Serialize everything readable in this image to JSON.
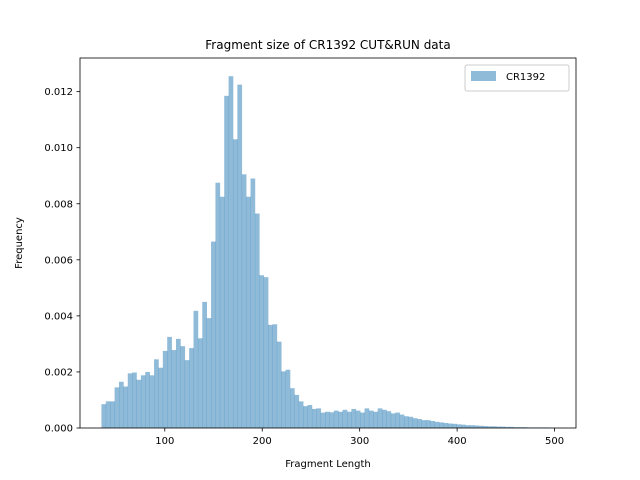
{
  "chart_data": {
    "type": "bar",
    "title": "Fragment size of CR1392 CUT&RUN data",
    "xlabel": "Fragment Length",
    "ylabel": "Frequency",
    "xlim": [
      13,
      522
    ],
    "ylim": [
      0,
      0.0132
    ],
    "grid": false,
    "legend_position": "top-right",
    "series": [
      {
        "name": "CR1392",
        "color": "#1f77b4",
        "alpha": 0.5,
        "bin_width": 4.5,
        "bins": [
          [
            35,
            0.00085
          ],
          [
            39.5,
            0.00095
          ],
          [
            44,
            0.00095
          ],
          [
            48.5,
            0.00145
          ],
          [
            53,
            0.00165
          ],
          [
            57.5,
            0.00148
          ],
          [
            62,
            0.00195
          ],
          [
            66.5,
            0.00198
          ],
          [
            71,
            0.00172
          ],
          [
            75.5,
            0.00188
          ],
          [
            80,
            0.002
          ],
          [
            84.5,
            0.00188
          ],
          [
            89,
            0.00245
          ],
          [
            93.5,
            0.00215
          ],
          [
            98,
            0.00275
          ],
          [
            102.5,
            0.00325
          ],
          [
            107,
            0.00278
          ],
          [
            111.5,
            0.00318
          ],
          [
            116,
            0.00292
          ],
          [
            120.5,
            0.00242
          ],
          [
            125,
            0.00285
          ],
          [
            129.5,
            0.00418
          ],
          [
            134,
            0.0032
          ],
          [
            138.5,
            0.0045
          ],
          [
            143,
            0.00392
          ],
          [
            147.5,
            0.00665
          ],
          [
            152,
            0.00875
          ],
          [
            156.5,
            0.00825
          ],
          [
            161,
            0.01185
          ],
          [
            165.5,
            0.01255
          ],
          [
            170,
            0.0103
          ],
          [
            174.5,
            0.01225
          ],
          [
            179,
            0.00905
          ],
          [
            183.5,
            0.00825
          ],
          [
            188,
            0.0089
          ],
          [
            192.5,
            0.00765
          ],
          [
            197,
            0.00545
          ],
          [
            201.5,
            0.00538
          ],
          [
            206,
            0.00368
          ],
          [
            210.5,
            0.0037
          ],
          [
            215,
            0.00308
          ],
          [
            219.5,
            0.00202
          ],
          [
            224,
            0.00208
          ],
          [
            228.5,
            0.00142
          ],
          [
            233,
            0.00118
          ],
          [
            237.5,
            0.00095
          ],
          [
            242,
            0.00078
          ],
          [
            246.5,
            0.00082
          ],
          [
            251,
            0.00068
          ],
          [
            255.5,
            0.0007
          ],
          [
            260,
            0.00055
          ],
          [
            264.5,
            0.00058
          ],
          [
            269,
            0.00056
          ],
          [
            273.5,
            0.00062
          ],
          [
            278,
            0.00058
          ],
          [
            282.5,
            0.00065
          ],
          [
            287,
            0.00058
          ],
          [
            291.5,
            0.00068
          ],
          [
            296,
            0.00062
          ],
          [
            300.5,
            0.00055
          ],
          [
            305,
            0.0007
          ],
          [
            309.5,
            0.00062
          ],
          [
            314,
            0.00058
          ],
          [
            318.5,
            0.0007
          ],
          [
            323,
            0.00065
          ],
          [
            327.5,
            0.0006
          ],
          [
            332,
            0.00052
          ],
          [
            336.5,
            0.00055
          ],
          [
            341,
            0.00048
          ],
          [
            345.5,
            0.00042
          ],
          [
            350,
            0.0004
          ],
          [
            354.5,
            0.00035
          ],
          [
            359,
            0.00032
          ],
          [
            363.5,
            0.00028
          ],
          [
            368,
            0.00028
          ],
          [
            372.5,
            0.00025
          ],
          [
            377,
            0.00022
          ],
          [
            381.5,
            0.0002
          ],
          [
            386,
            0.00018
          ],
          [
            390.5,
            0.00016
          ],
          [
            395,
            0.00015
          ],
          [
            399.5,
            0.00013
          ],
          [
            404,
            0.00012
          ],
          [
            408.5,
            0.0001
          ],
          [
            413,
            0.0001
          ],
          [
            417.5,
            9e-05
          ],
          [
            422,
            8e-05
          ],
          [
            426.5,
            7e-05
          ],
          [
            431,
            6e-05
          ],
          [
            435.5,
            6e-05
          ],
          [
            440,
            5e-05
          ],
          [
            444.5,
            5e-05
          ],
          [
            449,
            4e-05
          ],
          [
            453.5,
            4e-05
          ],
          [
            458,
            3e-05
          ],
          [
            462.5,
            3e-05
          ],
          [
            467,
            3e-05
          ],
          [
            471.5,
            2e-05
          ],
          [
            476,
            2e-05
          ],
          [
            480.5,
            2e-05
          ],
          [
            485,
            2e-05
          ],
          [
            489.5,
            2e-05
          ],
          [
            494,
            1e-05
          ]
        ]
      }
    ],
    "xticks": [
      {
        "value": 100,
        "label": "100"
      },
      {
        "value": 200,
        "label": "200"
      },
      {
        "value": 300,
        "label": "300"
      },
      {
        "value": 400,
        "label": "400"
      },
      {
        "value": 500,
        "label": "500"
      }
    ],
    "yticks": [
      {
        "value": 0.0,
        "label": "0.000"
      },
      {
        "value": 0.002,
        "label": "0.002"
      },
      {
        "value": 0.004,
        "label": "0.004"
      },
      {
        "value": 0.006,
        "label": "0.006"
      },
      {
        "value": 0.008,
        "label": "0.008"
      },
      {
        "value": 0.01,
        "label": "0.010"
      },
      {
        "value": 0.012,
        "label": "0.012"
      }
    ]
  }
}
